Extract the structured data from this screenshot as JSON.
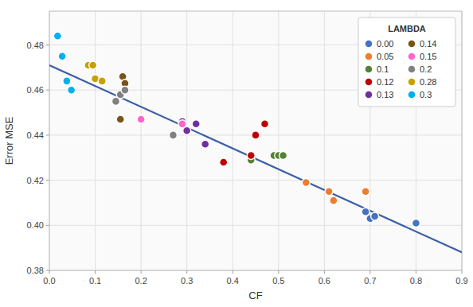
{
  "chart_data": {
    "type": "scatter",
    "xlabel": "CF",
    "ylabel": "Error MSE",
    "legend_title": "LAMBDA",
    "xlim": [
      0.0,
      0.9
    ],
    "ylim": [
      0.38,
      0.495
    ],
    "xticks": [
      {
        "value": 0.0,
        "label": "0.0"
      },
      0.1,
      0.2,
      0.3,
      0.4,
      0.5,
      0.6,
      0.7,
      0.8,
      0.9
    ],
    "yticks": [
      0.38,
      {
        "value": 0.4,
        "label": "0.40"
      },
      0.42,
      0.44,
      0.46,
      0.48
    ],
    "grid": true,
    "legend": "upper right",
    "series": [
      {
        "type": "line",
        "color": "#3B5EA6",
        "x": [
          0.0,
          0.9
        ],
        "values": [
          0.471,
          0.388
        ]
      },
      {
        "name": "0.00",
        "color": "#4472C4",
        "x": [
          0.69,
          0.7,
          0.71,
          0.8
        ],
        "values": [
          0.406,
          0.403,
          0.404,
          0.401
        ]
      },
      {
        "name": "0.05",
        "color": "#ED7D31",
        "x": [
          0.56,
          0.61,
          0.62,
          0.69
        ],
        "values": [
          0.419,
          0.415,
          0.411,
          0.415
        ]
      },
      {
        "name": "0.1",
        "color": "#548235",
        "x": [
          0.44,
          0.49,
          0.5,
          0.51
        ],
        "values": [
          0.429,
          0.431,
          0.431,
          0.431
        ]
      },
      {
        "name": "0.12",
        "color": "#C00000",
        "x": [
          0.38,
          0.44,
          0.45,
          0.47
        ],
        "values": [
          0.428,
          0.431,
          0.44,
          0.445
        ]
      },
      {
        "name": "0.13",
        "color": "#7030A0",
        "x": [
          0.29,
          0.3,
          0.32,
          0.34
        ],
        "values": [
          0.446,
          0.442,
          0.445,
          0.436
        ]
      },
      {
        "name": "0.14",
        "color": "#7B5217",
        "x": [
          0.155,
          0.16,
          0.165
        ],
        "values": [
          0.447,
          0.466,
          0.463
        ]
      },
      {
        "name": "0.15",
        "color": "#FF66CC",
        "x": [
          0.2,
          0.29
        ],
        "values": [
          0.447,
          0.445
        ]
      },
      {
        "name": "0.2",
        "color": "#808080",
        "x": [
          0.145,
          0.155,
          0.165,
          0.27
        ],
        "values": [
          0.455,
          0.458,
          0.46,
          0.44
        ]
      },
      {
        "name": "0.28",
        "color": "#C8A000",
        "x": [
          0.085,
          0.095,
          0.1,
          0.115
        ],
        "values": [
          0.471,
          0.471,
          0.465,
          0.464
        ]
      },
      {
        "name": "0.3",
        "color": "#00B0F0",
        "x": [
          0.018,
          0.028,
          0.038,
          0.048
        ],
        "values": [
          0.484,
          0.475,
          0.464,
          0.46
        ]
      }
    ]
  }
}
